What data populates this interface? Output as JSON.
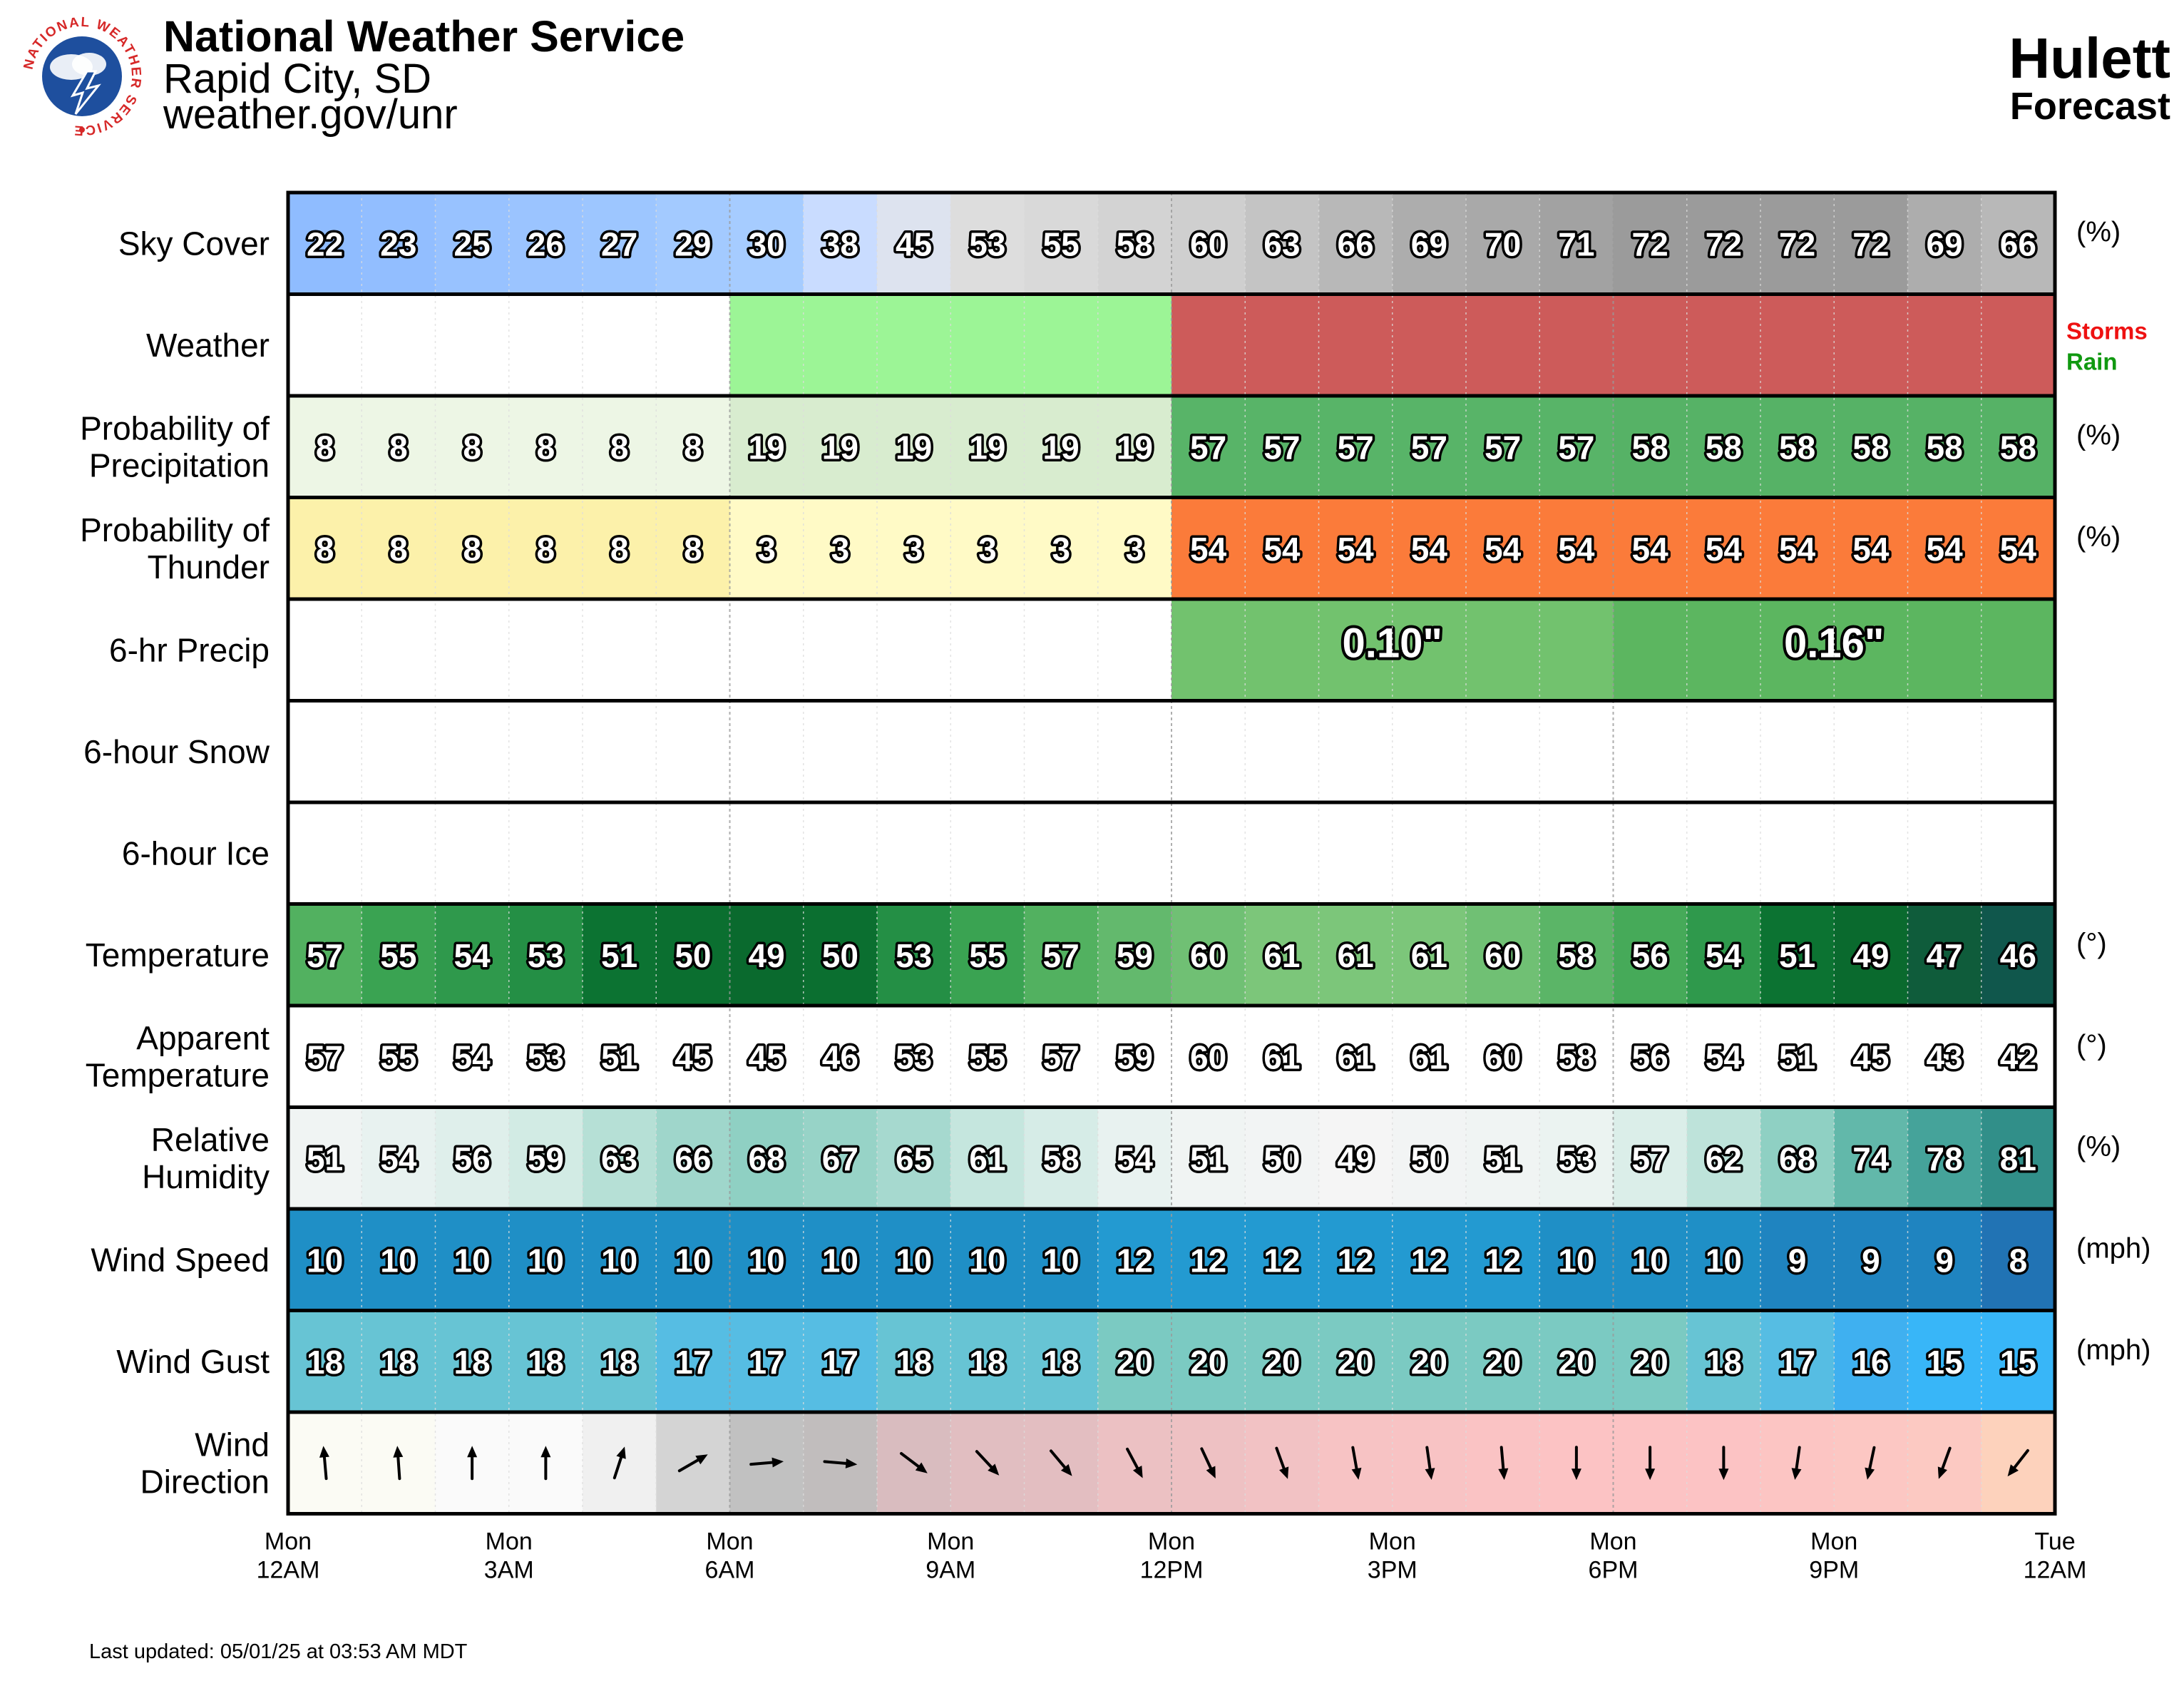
{
  "header": {
    "agency": "National Weather Service",
    "office": "Rapid City, SD",
    "url": "weather.gov/unr",
    "location": "Hulett",
    "subtitle": "Forecast",
    "logo_text": "NATIONAL WEATHER SERVICE"
  },
  "footer": {
    "updated": "Last updated: 05/01/25 at 03:53 AM MDT"
  },
  "chart_data": {
    "type": "table",
    "hours": [
      "Mon 12AM",
      "Mon 1AM",
      "Mon 2AM",
      "Mon 3AM",
      "Mon 4AM",
      "Mon 5AM",
      "Mon 6AM",
      "Mon 7AM",
      "Mon 8AM",
      "Mon 9AM",
      "Mon 10AM",
      "Mon 11AM",
      "Mon 12PM",
      "Mon 1PM",
      "Mon 2PM",
      "Mon 3PM",
      "Mon 4PM",
      "Mon 5PM",
      "Mon 6PM",
      "Mon 7PM",
      "Mon 8PM",
      "Mon 9PM",
      "Mon 10PM",
      "Mon 11PM"
    ],
    "time_labels": [
      {
        "day": "Mon",
        "time": "12AM",
        "hour": 0
      },
      {
        "day": "Mon",
        "time": "3AM",
        "hour": 3
      },
      {
        "day": "Mon",
        "time": "6AM",
        "hour": 6
      },
      {
        "day": "Mon",
        "time": "9AM",
        "hour": 9
      },
      {
        "day": "Mon",
        "time": "12PM",
        "hour": 12
      },
      {
        "day": "Mon",
        "time": "3PM",
        "hour": 15
      },
      {
        "day": "Mon",
        "time": "6PM",
        "hour": 18
      },
      {
        "day": "Mon",
        "time": "9PM",
        "hour": 21
      },
      {
        "day": "Tue",
        "time": "12AM",
        "hour": 24
      }
    ],
    "rows": [
      {
        "key": "sky",
        "label": [
          "Sky Cover"
        ],
        "unit": "(%)",
        "scale": "sky",
        "values": [
          22,
          23,
          25,
          26,
          27,
          29,
          30,
          38,
          45,
          53,
          55,
          58,
          60,
          63,
          66,
          69,
          70,
          71,
          72,
          72,
          72,
          72,
          69,
          66
        ]
      },
      {
        "key": "weather",
        "label": [
          "Weather"
        ],
        "type": "weather",
        "segments": [
          {
            "start": 0,
            "end": 6,
            "type": "none"
          },
          {
            "start": 6,
            "end": 12,
            "type": "rain"
          },
          {
            "start": 12,
            "end": 24,
            "type": "storms"
          }
        ],
        "legend": [
          {
            "text": "Storms",
            "color": "#ee1111"
          },
          {
            "text": "Rain",
            "color": "#119911"
          }
        ]
      },
      {
        "key": "pop",
        "label": [
          "Probability of",
          "Precipitation"
        ],
        "unit": "(%)",
        "scale": "pop",
        "values": [
          8,
          8,
          8,
          8,
          8,
          8,
          19,
          19,
          19,
          19,
          19,
          19,
          57,
          57,
          57,
          57,
          57,
          57,
          58,
          58,
          58,
          58,
          58,
          58
        ]
      },
      {
        "key": "thunder",
        "label": [
          "Probability of",
          "Thunder"
        ],
        "unit": "(%)",
        "scale": "thunder",
        "values": [
          8,
          8,
          8,
          8,
          8,
          8,
          3,
          3,
          3,
          3,
          3,
          3,
          54,
          54,
          54,
          54,
          54,
          54,
          54,
          54,
          54,
          54,
          54,
          54
        ]
      },
      {
        "key": "qpf",
        "label": [
          "6-hr Precip"
        ],
        "type": "block",
        "blocks": [
          {
            "start": 0,
            "end": 6,
            "value": null
          },
          {
            "start": 6,
            "end": 12,
            "value": null
          },
          {
            "start": 12,
            "end": 18,
            "value": "0.10\""
          },
          {
            "start": 18,
            "end": 24,
            "value": "0.16\""
          }
        ]
      },
      {
        "key": "snow",
        "label": [
          "6-hour Snow"
        ],
        "type": "block",
        "blocks": [
          {
            "start": 0,
            "end": 6,
            "value": null
          },
          {
            "start": 6,
            "end": 12,
            "value": null
          },
          {
            "start": 12,
            "end": 18,
            "value": null
          },
          {
            "start": 18,
            "end": 24,
            "value": null
          }
        ]
      },
      {
        "key": "ice",
        "label": [
          "6-hour Ice"
        ],
        "type": "block",
        "blocks": [
          {
            "start": 0,
            "end": 6,
            "value": null
          },
          {
            "start": 6,
            "end": 12,
            "value": null
          },
          {
            "start": 12,
            "end": 18,
            "value": null
          },
          {
            "start": 18,
            "end": 24,
            "value": null
          }
        ]
      },
      {
        "key": "temp",
        "label": [
          "Temperature"
        ],
        "unit": "(°)",
        "scale": "temp",
        "values": [
          57,
          55,
          54,
          53,
          51,
          50,
          49,
          50,
          53,
          55,
          57,
          59,
          60,
          61,
          61,
          61,
          60,
          58,
          56,
          54,
          51,
          49,
          47,
          46
        ]
      },
      {
        "key": "apparent",
        "label": [
          "Apparent",
          "Temperature"
        ],
        "unit": "(°)",
        "scale": "none",
        "values": [
          57,
          55,
          54,
          53,
          51,
          45,
          45,
          46,
          53,
          55,
          57,
          59,
          60,
          61,
          61,
          61,
          60,
          58,
          56,
          54,
          51,
          45,
          43,
          42
        ]
      },
      {
        "key": "rh",
        "label": [
          "Relative",
          "Humidity"
        ],
        "unit": "(%)",
        "scale": "rh",
        "values": [
          51,
          54,
          56,
          59,
          63,
          66,
          68,
          67,
          65,
          61,
          58,
          54,
          51,
          50,
          49,
          50,
          51,
          53,
          57,
          62,
          68,
          74,
          78,
          81
        ]
      },
      {
        "key": "wind",
        "label": [
          "Wind Speed"
        ],
        "unit": "(mph)",
        "scale": "wind",
        "values": [
          10,
          10,
          10,
          10,
          10,
          10,
          10,
          10,
          10,
          10,
          10,
          12,
          12,
          12,
          12,
          12,
          12,
          10,
          10,
          10,
          9,
          9,
          9,
          8
        ]
      },
      {
        "key": "gust",
        "label": [
          "Wind Gust"
        ],
        "unit": "(mph)",
        "scale": "gust",
        "values": [
          18,
          18,
          18,
          18,
          18,
          17,
          17,
          17,
          18,
          18,
          18,
          20,
          20,
          20,
          20,
          20,
          20,
          20,
          20,
          18,
          17,
          16,
          15,
          15
        ]
      },
      {
        "key": "winddir",
        "label": [
          "Wind",
          "Direction"
        ],
        "type": "arrows",
        "unit_note": "degrees the wind blows toward",
        "values": [
          355,
          356,
          0,
          0,
          18,
          60,
          85,
          95,
          127,
          137,
          140,
          152,
          155,
          160,
          170,
          172,
          175,
          180,
          180,
          180,
          188,
          192,
          200,
          218
        ]
      }
    ]
  }
}
